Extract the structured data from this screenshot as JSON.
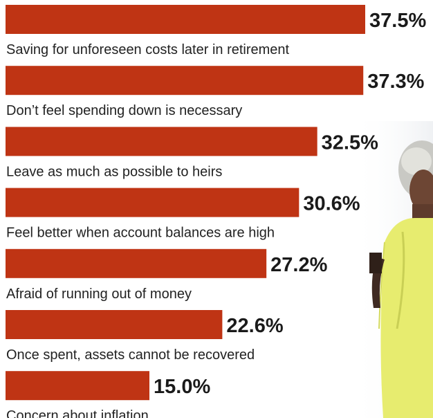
{
  "chart_data": {
    "type": "bar",
    "orientation": "horizontal",
    "bar_color": "#BF3414",
    "categories": [
      "Saving for unforeseen costs later in retirement",
      "Don’t feel spending down is necessary",
      "Leave as much as possible to heirs",
      "Feel better when account balances are high",
      "Afraid of running out of money",
      "Once spent, assets cannot be recovered",
      "Concern about inflation"
    ],
    "values": [
      37.5,
      37.3,
      32.5,
      30.6,
      27.2,
      22.6,
      15.0
    ],
    "value_labels": [
      "37.5%",
      "37.3%",
      "32.5%",
      "30.6%",
      "27.2%",
      "22.6%",
      "15.0%"
    ],
    "value_label_position": "right of bar",
    "category_label_position": "below bar",
    "xlim": [
      0,
      37.5
    ]
  },
  "photo": {
    "icon": "woman-photo-illustration"
  }
}
